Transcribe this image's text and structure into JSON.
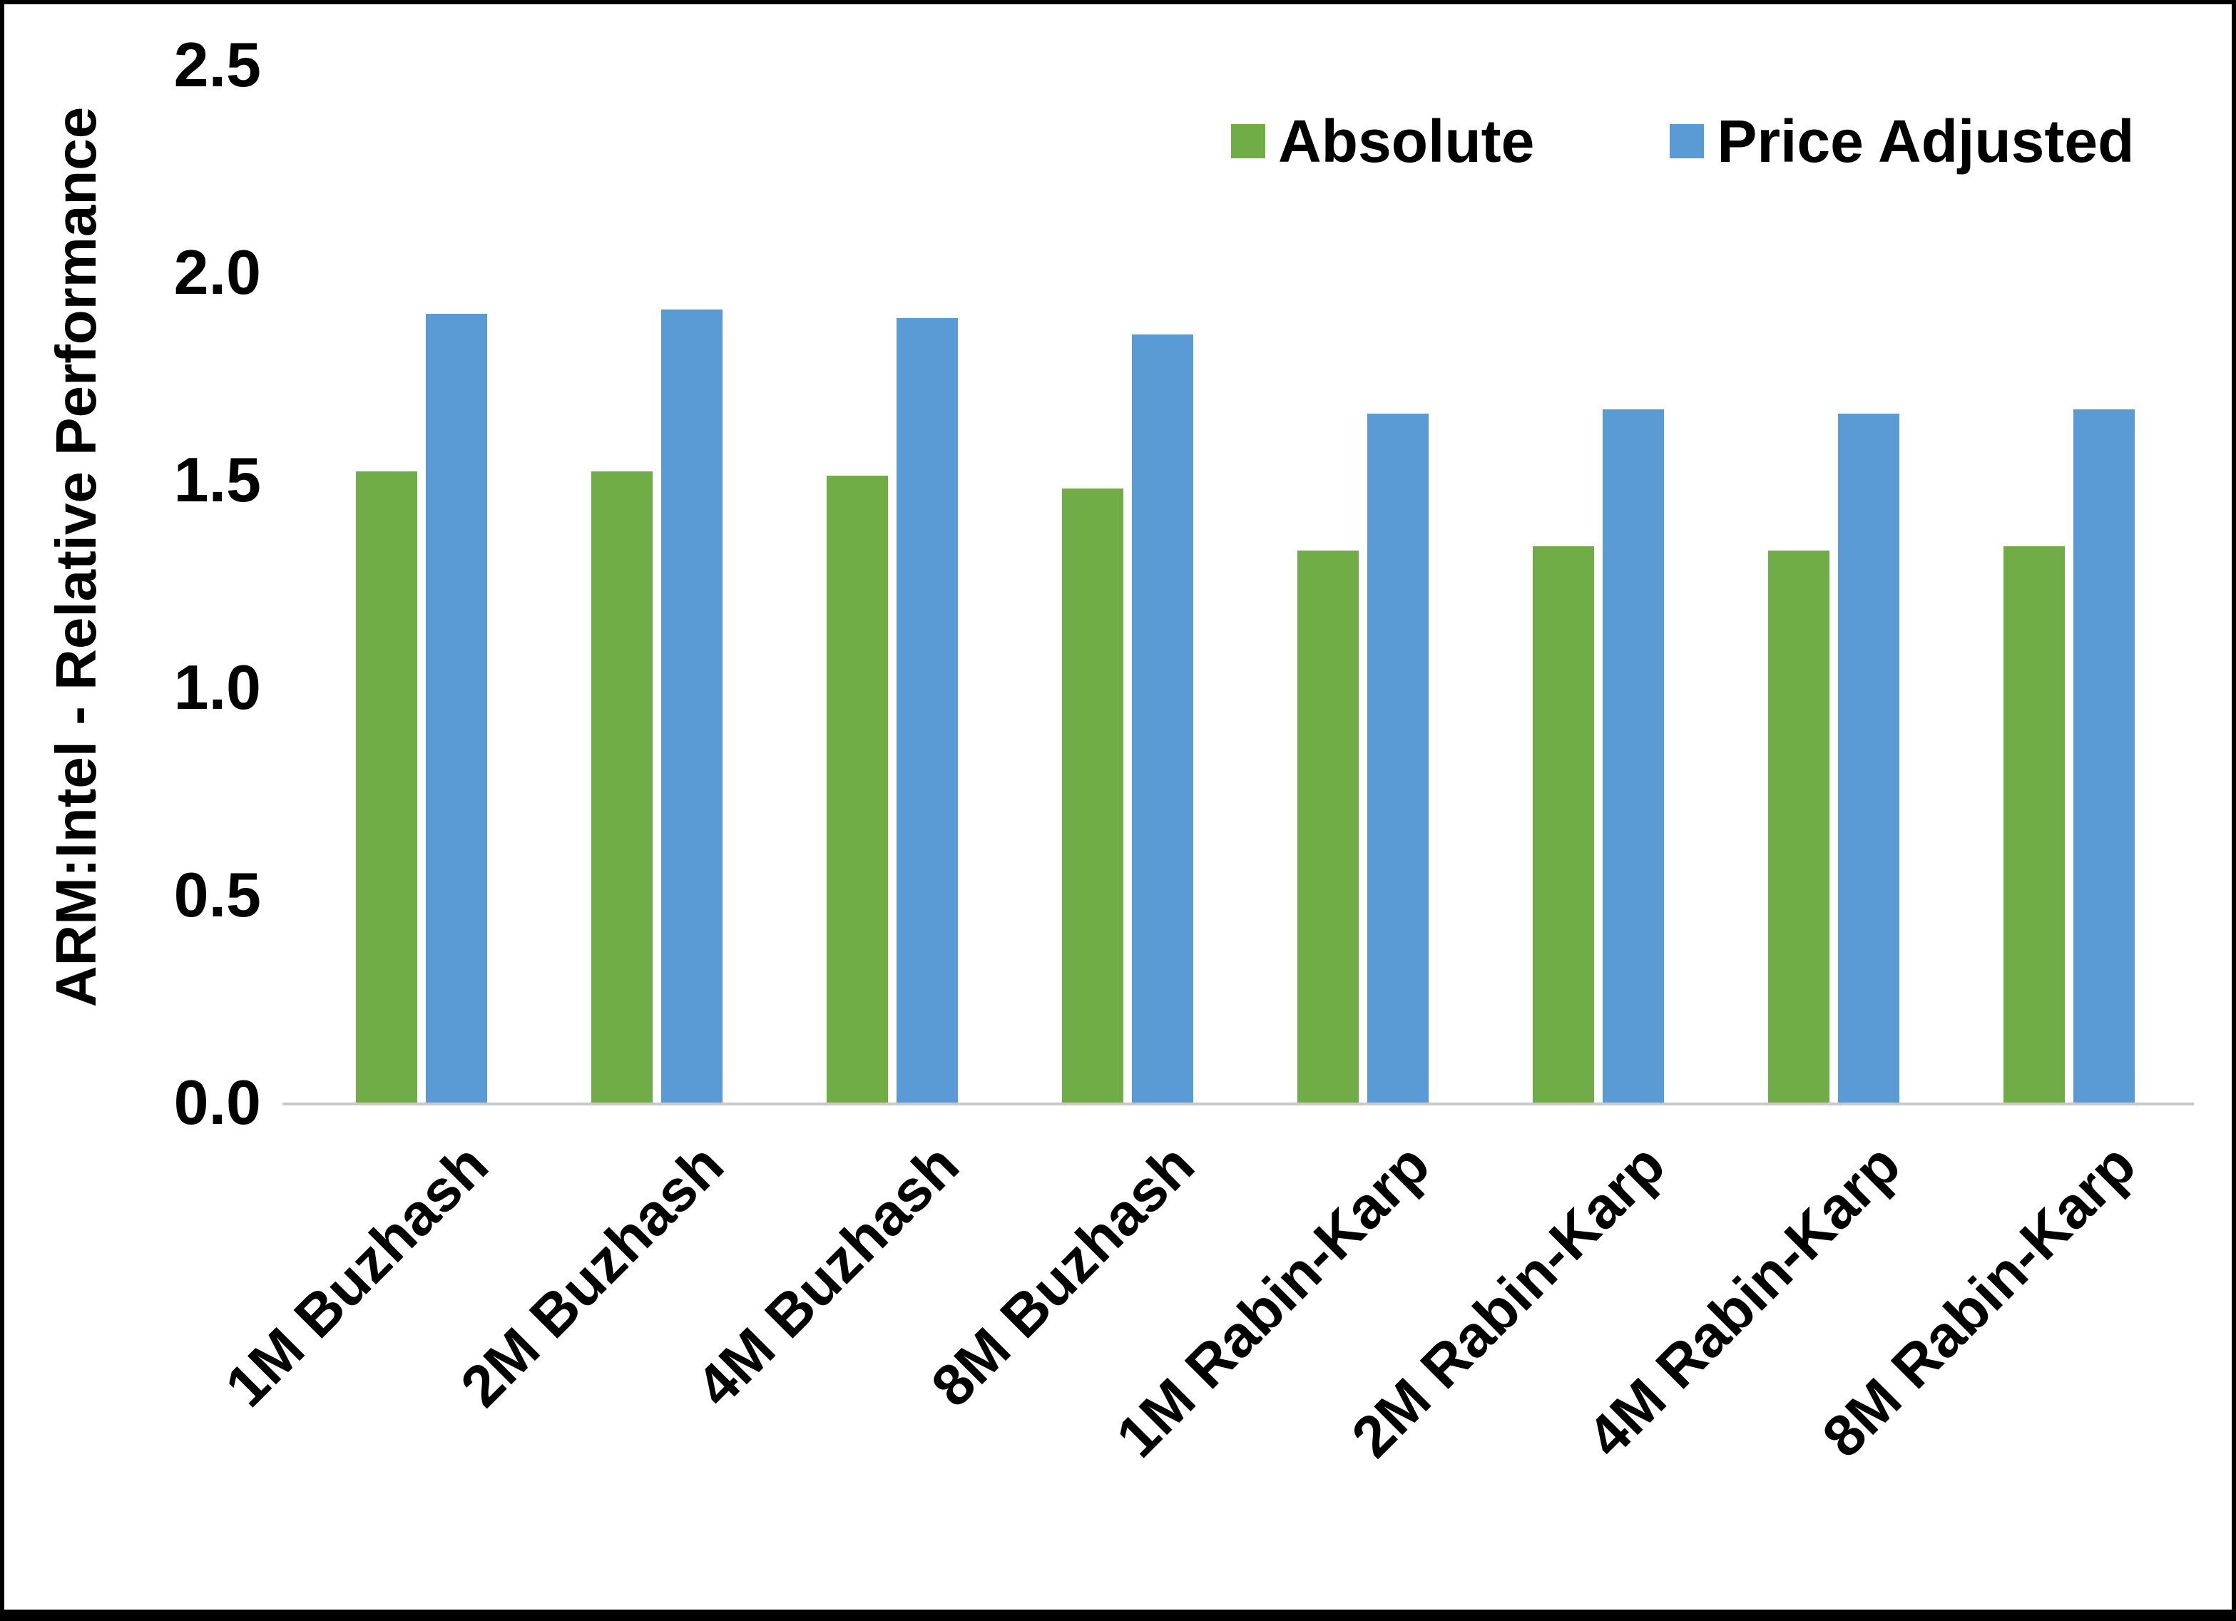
{
  "chart_data": {
    "type": "bar",
    "title": "",
    "xlabel": "",
    "ylabel": "ARM:Intel - Relative Performance",
    "ylim": [
      0,
      2.5
    ],
    "ytick_step": 0.5,
    "ytick_labels": [
      "0.0",
      "0.5",
      "1.0",
      "1.5",
      "2.0",
      "2.5"
    ],
    "grid": false,
    "legend_position": "top",
    "categories": [
      "1M Buzhash",
      "2M Buzhash",
      "4M Buzhash",
      "8M Buzhash",
      "1M Rabin-Karp",
      "2M Rabin-Karp",
      "4M Rabin-Karp",
      "8M Rabin-Karp"
    ],
    "series": [
      {
        "name": "Absolute",
        "color": "#70AD47",
        "values": [
          1.52,
          1.52,
          1.51,
          1.48,
          1.33,
          1.34,
          1.33,
          1.34
        ]
      },
      {
        "name": "Price Adjusted",
        "color": "#5B9BD5",
        "values": [
          1.9,
          1.91,
          1.89,
          1.85,
          1.66,
          1.67,
          1.66,
          1.67
        ]
      }
    ]
  },
  "colors": {
    "background": "#FFFFFF",
    "frame_border": "#000000",
    "axis_line": "#C9C9C9",
    "text": "#000000"
  }
}
